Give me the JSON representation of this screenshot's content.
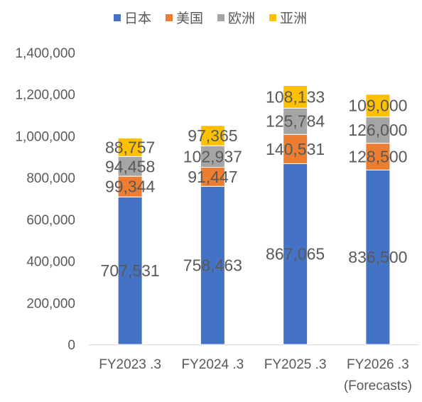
{
  "colors": {
    "japan": "#4472C4",
    "usa": "#ED7D31",
    "europe": "#A5A5A5",
    "asia": "#FFC000",
    "text": "#595959",
    "axis": "#D9D9D9"
  },
  "chart_data": {
    "type": "bar",
    "stacked": true,
    "title": "",
    "xlabel": "",
    "ylabel": "",
    "ylim": [
      0,
      1400000
    ],
    "y_ticks": [
      "0",
      "200,000",
      "400,000",
      "600,000",
      "800,000",
      "1,000,000",
      "1,200,000",
      "1,400,000"
    ],
    "grid": false,
    "legend_position": "top",
    "categories": [
      [
        "FY2023 .3"
      ],
      [
        "FY2024 .3"
      ],
      [
        "FY2025 .3"
      ],
      [
        "FY2026 .3",
        "(Forecasts)"
      ]
    ],
    "series": [
      {
        "name": "日本",
        "color": "#4472C4",
        "values": [
          707531,
          758463,
          867065,
          836500
        ],
        "labels": [
          "707,531",
          "758,463",
          "867,065",
          "836,500"
        ]
      },
      {
        "name": "美国",
        "color": "#ED7D31",
        "values": [
          99344,
          91447,
          140531,
          128500
        ],
        "labels": [
          "99,344",
          "91,447",
          "140,531",
          "128,500"
        ]
      },
      {
        "name": "欧洲",
        "color": "#A5A5A5",
        "values": [
          94458,
          102937,
          125784,
          126000
        ],
        "labels": [
          "94,458",
          "102,937",
          "125,784",
          "126,000"
        ]
      },
      {
        "name": "亚洲",
        "color": "#FFC000",
        "values": [
          88757,
          97365,
          108133,
          109000
        ],
        "labels": [
          "88,757",
          "97,365",
          "108,133",
          "109,000"
        ]
      }
    ]
  }
}
